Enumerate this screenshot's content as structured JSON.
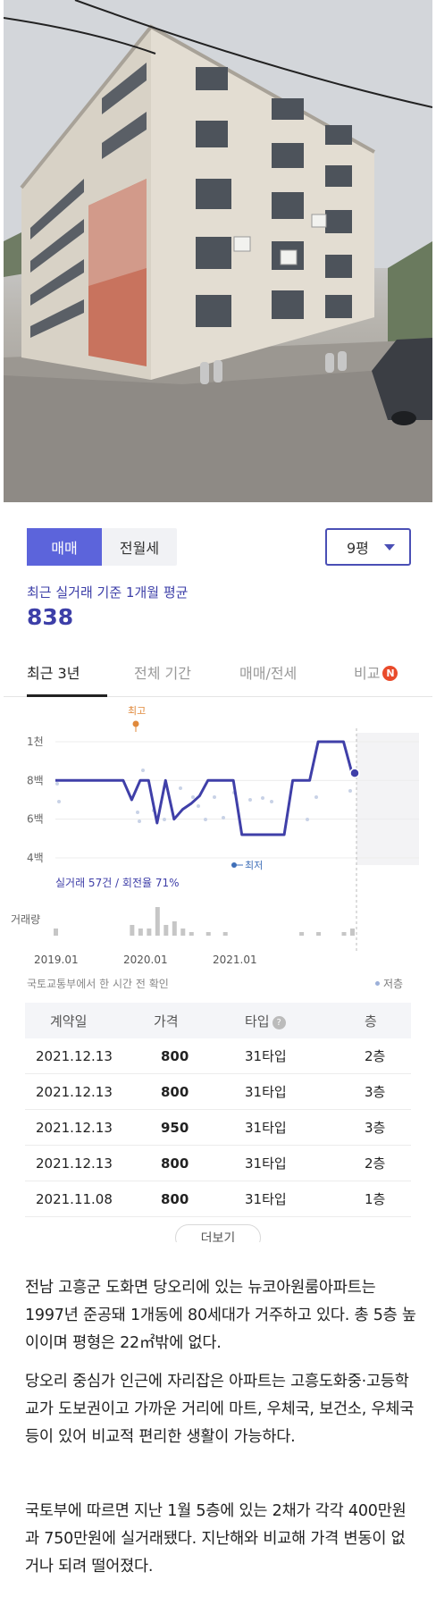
{
  "deal_toggle": {
    "sale_label": "매매",
    "jeonse_label": "전월세"
  },
  "size_select": {
    "value": "9평"
  },
  "average": {
    "label": "최근 실거래 기준 1개월 평균",
    "value": "838"
  },
  "period_tabs": [
    "최근 3년",
    "전체 기간",
    "매매/전세",
    "비교"
  ],
  "compare_badge": "N",
  "chart_data": {
    "type": "line",
    "y_tick_labels": [
      "1천",
      "8백",
      "6백",
      "4백"
    ],
    "ylim": [
      400,
      1000
    ],
    "x_tick_labels": [
      "2019.01",
      "2020.01",
      "2021.01"
    ],
    "series": [
      {
        "values": [
          800,
          800,
          800,
          800,
          800,
          800,
          800,
          800,
          800,
          700,
          800,
          800,
          580,
          800,
          600,
          650,
          680,
          720,
          800,
          800,
          800,
          800,
          520,
          520,
          520,
          520,
          520,
          520,
          800,
          800,
          800,
          1000,
          1000,
          1000,
          1000,
          838
        ]
      }
    ],
    "high_label": "최고",
    "low_label": "최저",
    "summary": "실거래 57건 / 회전율 71%",
    "volume_label": "거래량",
    "source_note": "국토교통부에서 한 시간 전 확인",
    "legend_low": "저층"
  },
  "table": {
    "headers": [
      "계약일",
      "가격",
      "타입",
      "층"
    ],
    "help_icon": "?",
    "rows": [
      [
        "2021.12.13",
        "800",
        "31타입",
        "2층"
      ],
      [
        "2021.12.13",
        "800",
        "31타입",
        "3층"
      ],
      [
        "2021.12.13",
        "950",
        "31타입",
        "3층"
      ],
      [
        "2021.12.13",
        "800",
        "31타입",
        "2층"
      ],
      [
        "2021.11.08",
        "800",
        "31타입",
        "1층"
      ]
    ]
  },
  "more_button": "더보기",
  "article": [
    "전남 고흥군 도화면 당오리에 있는 뉴코아원룸아파트는 1997년 준공돼 1개동에 80세대가 거주하고 있다. 총 5층 높이이며 평형은 22㎡밖에 없다.",
    "당오리 중심가 인근에 자리잡은 아파트는 고흥도화중·고등학교가 도보권이고 가까운 거리에 마트, 우체국, 보건소, 우체국 등이 있어 비교적 편리한 생활이 가능하다.",
    "국토부에 따르면 지난 1월 5층에 있는 2채가 각각 400만원과 750만원에 실거래됐다. 지난해와 비교해 가격 변동이 없거나 되려 떨어졌다."
  ]
}
